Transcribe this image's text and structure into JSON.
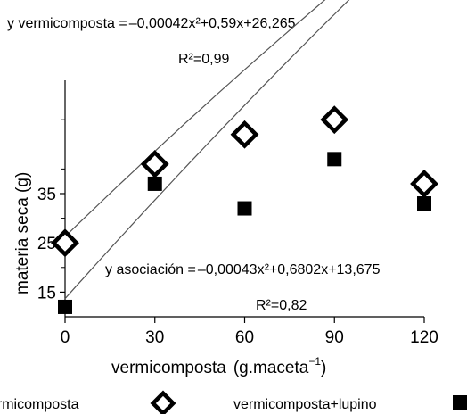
{
  "chart_data": {
    "type": "scatter",
    "xlabel": "vermicomposta",
    "xlabel_unit": "(g.maceta",
    "xlabel_unit_exp": "−1",
    "xlabel_unit_close": ")",
    "ylabel": "materia seca (g)",
    "xlim": [
      0,
      120
    ],
    "ylim": [
      10,
      58
    ],
    "x_ticks": [
      0,
      30,
      60,
      90,
      120
    ],
    "y_ticks": [
      15,
      25,
      35
    ],
    "grid": false,
    "legend_position": "bottom",
    "series": [
      {
        "name": "vermicomposta",
        "marker": "open-diamond",
        "color": "#000000",
        "x": [
          0,
          30,
          60,
          90,
          120
        ],
        "y": [
          25,
          41,
          47,
          50,
          37
        ]
      },
      {
        "name": "vermicomposta+lupino",
        "marker": "filled-square",
        "color": "#000000",
        "x": [
          0,
          30,
          60,
          90,
          120
        ],
        "y": [
          12,
          37,
          32,
          42,
          33
        ]
      }
    ],
    "fits": [
      {
        "series": "vermicomposta",
        "equation_prefix": "y vermicomposta =",
        "equation": "–0,00042x²+0,59x+26,265",
        "r2": "R²=0,99",
        "coef": [
          -0.00042,
          0.59,
          26.265
        ]
      },
      {
        "series": "vermicomposta+lupino",
        "equation_prefix": "y asociación =",
        "equation": "–0,00043x²+0,6802x+13,675",
        "r2": "R²=0,82",
        "coef": [
          -0.00043,
          0.6802,
          13.675
        ]
      }
    ]
  }
}
